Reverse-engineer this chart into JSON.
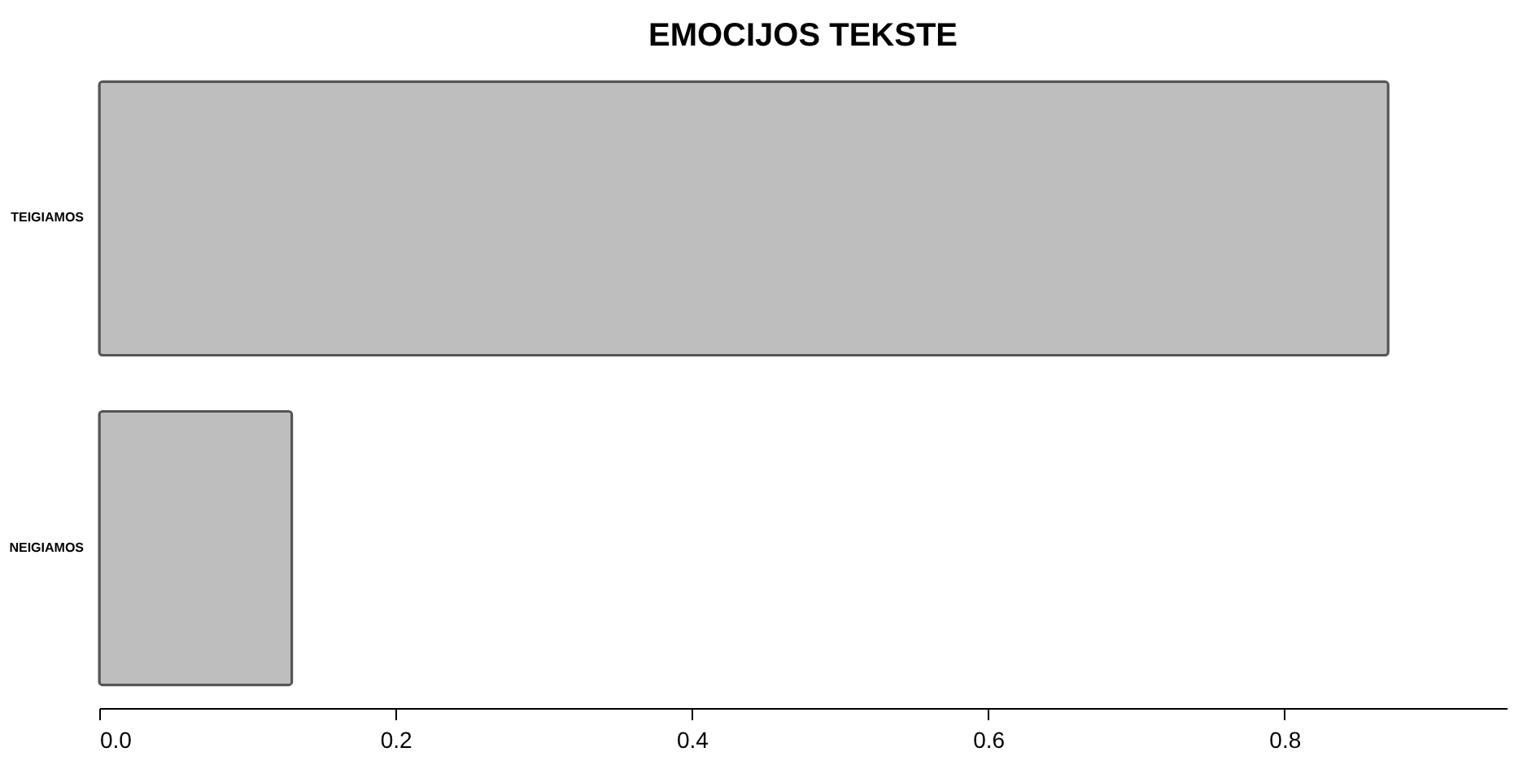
{
  "chart_data": {
    "type": "bar",
    "orientation": "horizontal",
    "title": "EMOCIJOS TEKSTE",
    "categories": [
      "TEIGIAMOS",
      "NEIGIAMOS"
    ],
    "values": [
      0.87,
      0.13
    ],
    "color": "#bebebe",
    "xlim": [
      0,
      0.95
    ],
    "xticks": [
      {
        "value": 0,
        "label": "0.0"
      },
      0.2,
      0.4,
      0.6,
      0.8
    ],
    "grid": false
  }
}
